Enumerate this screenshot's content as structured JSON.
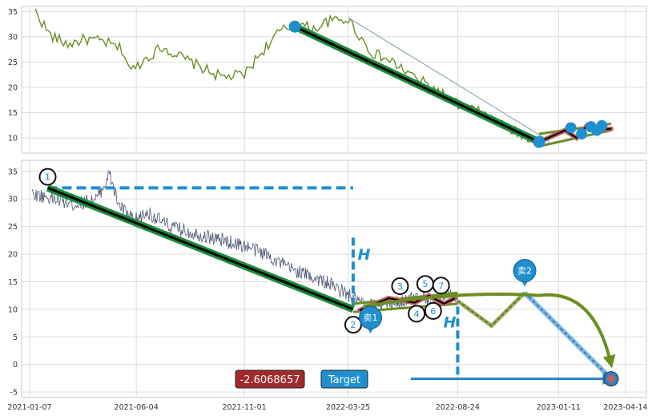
{
  "chart_data": [
    {
      "panel": "top",
      "type": "line",
      "ylim": [
        7,
        36
      ],
      "y_ticks": [
        10,
        15,
        20,
        25,
        30,
        35
      ],
      "grid": true,
      "colors": {
        "price": "#6b8e23",
        "trend": "#000000",
        "trend_outline": "#1e8c3a",
        "marker": "#1f8fcf",
        "channel": "#7f9ea8",
        "wedge": "#6b8e23",
        "wave": "#c0605f"
      },
      "price_keypoints": [
        [
          "2021-01-15",
          35.0
        ],
        [
          "2021-02-05",
          30.2
        ],
        [
          "2021-03-01",
          28.5
        ],
        [
          "2021-03-25",
          29.5
        ],
        [
          "2021-04-20",
          29.0
        ],
        [
          "2021-05-15",
          27.5
        ],
        [
          "2021-05-28",
          23.2
        ],
        [
          "2021-06-15",
          25.5
        ],
        [
          "2021-07-10",
          28.0
        ],
        [
          "2021-08-05",
          26.0
        ],
        [
          "2021-09-01",
          24.0
        ],
        [
          "2021-10-01",
          22.0
        ],
        [
          "2021-11-01",
          22.5
        ],
        [
          "2021-11-25",
          27.0
        ],
        [
          "2021-12-20",
          31.0
        ],
        [
          "2022-01-15",
          32.5
        ],
        [
          "2022-02-05",
          31.5
        ],
        [
          "2022-02-25",
          33.0
        ],
        [
          "2022-03-25",
          33.5
        ],
        [
          "2022-04-25",
          27.0
        ],
        [
          "2022-05-25",
          25.0
        ],
        [
          "2022-06-25",
          22.0
        ],
        [
          "2022-07-25",
          19.5
        ],
        [
          "2022-08-25",
          16.5
        ],
        [
          "2022-09-25",
          15.0
        ],
        [
          "2022-10-25",
          12.5
        ],
        [
          "2022-11-15",
          11.0
        ],
        [
          "2022-12-05",
          9.8
        ],
        [
          "2022-12-25",
          9.2
        ]
      ],
      "trend_line": [
        [
          "2022-01-10",
          32.0
        ],
        [
          "2022-12-15",
          9.2
        ]
      ],
      "channel_line": [
        [
          "2022-03-25",
          33.8
        ],
        [
          "2022-12-28",
          9.5
        ]
      ],
      "wedge_upper": [
        [
          "2022-12-15",
          10.8
        ],
        [
          "2023-03-25",
          12.8
        ]
      ],
      "wedge_lower": [
        [
          "2022-12-20",
          8.5
        ],
        [
          "2023-03-25",
          11.5
        ]
      ],
      "wave": [
        [
          "2022-12-20",
          9.5
        ],
        [
          "2023-01-20",
          11.5
        ],
        [
          "2023-02-05",
          10.0
        ],
        [
          "2023-02-20",
          12.5
        ],
        [
          "2023-03-05",
          11.5
        ],
        [
          "2023-03-25",
          11.8
        ]
      ],
      "markers": [
        [
          "2022-01-10",
          32.0
        ],
        [
          "2022-12-15",
          9.2
        ],
        [
          "2023-01-28",
          12.0
        ],
        [
          "2023-02-12",
          10.8
        ],
        [
          "2023-02-25",
          12.2
        ],
        [
          "2023-03-05",
          11.5
        ],
        [
          "2023-03-12",
          12.4
        ]
      ]
    },
    {
      "panel": "bottom",
      "type": "line",
      "ylim": [
        -6,
        37
      ],
      "y_ticks": [
        -5,
        0,
        5,
        10,
        15,
        20,
        25,
        30,
        35
      ],
      "x_ticks": [
        "2021-01-07",
        "2021-06-04",
        "2021-11-01",
        "2022-03-25",
        "2022-08-24",
        "2023-01-11",
        "2023-04-14"
      ],
      "grid": true,
      "colors": {
        "price": "#4a5570",
        "trend": "#000000",
        "trend_outline": "#1e8c3a",
        "dashed": "#1f8fcf",
        "arc": "#6b8e23",
        "target_arrow": "#2a82c4",
        "sell_line": "#1f6fb0"
      },
      "price_keypoints": [
        [
          "2021-01-10",
          31.0
        ],
        [
          "2021-02-10",
          30.0
        ],
        [
          "2021-03-10",
          29.0
        ],
        [
          "2021-04-10",
          30.0
        ],
        [
          "2021-04-28",
          34.5
        ],
        [
          "2021-05-10",
          29.0
        ],
        [
          "2021-06-01",
          26.0
        ],
        [
          "2021-06-20",
          27.5
        ],
        [
          "2021-07-20",
          25.0
        ],
        [
          "2021-09-01",
          23.5
        ],
        [
          "2021-10-01",
          22.5
        ],
        [
          "2021-11-01",
          21.5
        ],
        [
          "2021-12-01",
          20.0
        ],
        [
          "2022-01-01",
          17.5
        ],
        [
          "2022-02-01",
          16.0
        ],
        [
          "2022-03-01",
          14.5
        ],
        [
          "2022-04-01",
          12.0
        ],
        [
          "2022-04-20",
          10.5
        ],
        [
          "2022-05-15",
          11.0
        ],
        [
          "2022-06-10",
          11.5
        ],
        [
          "2022-07-05",
          12.5
        ],
        [
          "2022-07-25",
          11.0
        ],
        [
          "2022-08-10",
          12.5
        ],
        [
          "2022-08-25",
          12.0
        ]
      ],
      "trend_line": [
        [
          "2021-02-01",
          32.0
        ],
        [
          "2022-04-01",
          10.0
        ]
      ],
      "horizontal_dash": [
        [
          "2021-02-01",
          32.0
        ],
        [
          "2022-04-01",
          32.0
        ]
      ],
      "vertical_dash_left": [
        [
          "2022-04-01",
          23.0
        ],
        [
          "2022-04-01",
          10.0
        ]
      ],
      "vertical_dash_right": [
        [
          "2022-08-24",
          10.5
        ],
        [
          "2022-08-24",
          -2.5
        ]
      ],
      "wedge_upper": [
        [
          "2022-04-01",
          11.0
        ],
        [
          "2022-08-24",
          13.0
        ]
      ],
      "wedge_lower": [
        [
          "2022-04-01",
          9.5
        ],
        [
          "2022-08-24",
          11.0
        ]
      ],
      "wave": [
        [
          "2022-04-10",
          9.8
        ],
        [
          "2022-05-20",
          12.0
        ],
        [
          "2022-06-25",
          11.2
        ],
        [
          "2022-07-15",
          12.5
        ],
        [
          "2022-08-05",
          11.0
        ],
        [
          "2022-08-20",
          12.0
        ]
      ],
      "target_zigzag": [
        [
          "2022-08-24",
          11.5
        ],
        [
          "2022-10-10",
          7.0
        ],
        [
          "2022-11-25",
          13.0
        ]
      ],
      "arc": [
        [
          "2022-04-15",
          10.5
        ],
        [
          "2022-08-24",
          12.0
        ],
        [
          "2022-12-15",
          12.5
        ],
        [
          "2023-03-01",
          8.0
        ],
        [
          "2023-03-25",
          0.0
        ]
      ],
      "sell2_line": [
        [
          "2022-11-25",
          13.0
        ],
        [
          "2023-03-25",
          -2.6
        ]
      ],
      "target_arrow": [
        [
          "2022-06-20",
          -2.6
        ],
        [
          "2023-03-25",
          -2.6
        ]
      ],
      "target_point": [
        "2023-03-25",
        -2.6
      ],
      "circles": [
        {
          "label": "1",
          "date": "2021-02-01",
          "y": 34.0
        },
        {
          "label": "2",
          "date": "2022-04-01",
          "y": 7.2
        },
        {
          "label": "3",
          "date": "2022-06-05",
          "y": 14.2
        },
        {
          "label": "4",
          "date": "2022-06-28",
          "y": 9.2
        },
        {
          "label": "5",
          "date": "2022-07-10",
          "y": 14.6
        },
        {
          "label": "6",
          "date": "2022-07-21",
          "y": 9.7
        },
        {
          "label": "7",
          "date": "2022-08-01",
          "y": 14.3
        }
      ],
      "h_labels": [
        {
          "text": "H",
          "date": "2022-04-16",
          "y": 20.0
        },
        {
          "text": "H",
          "date": "2022-08-13",
          "y": 7.7
        }
      ],
      "pins": [
        {
          "text": "卖1",
          "date": "2022-04-25",
          "y": 8.5
        },
        {
          "text": "卖2",
          "date": "2022-11-25",
          "y": 17.0
        }
      ],
      "value_label": "-2.6068657",
      "target_label": "Target"
    }
  ]
}
